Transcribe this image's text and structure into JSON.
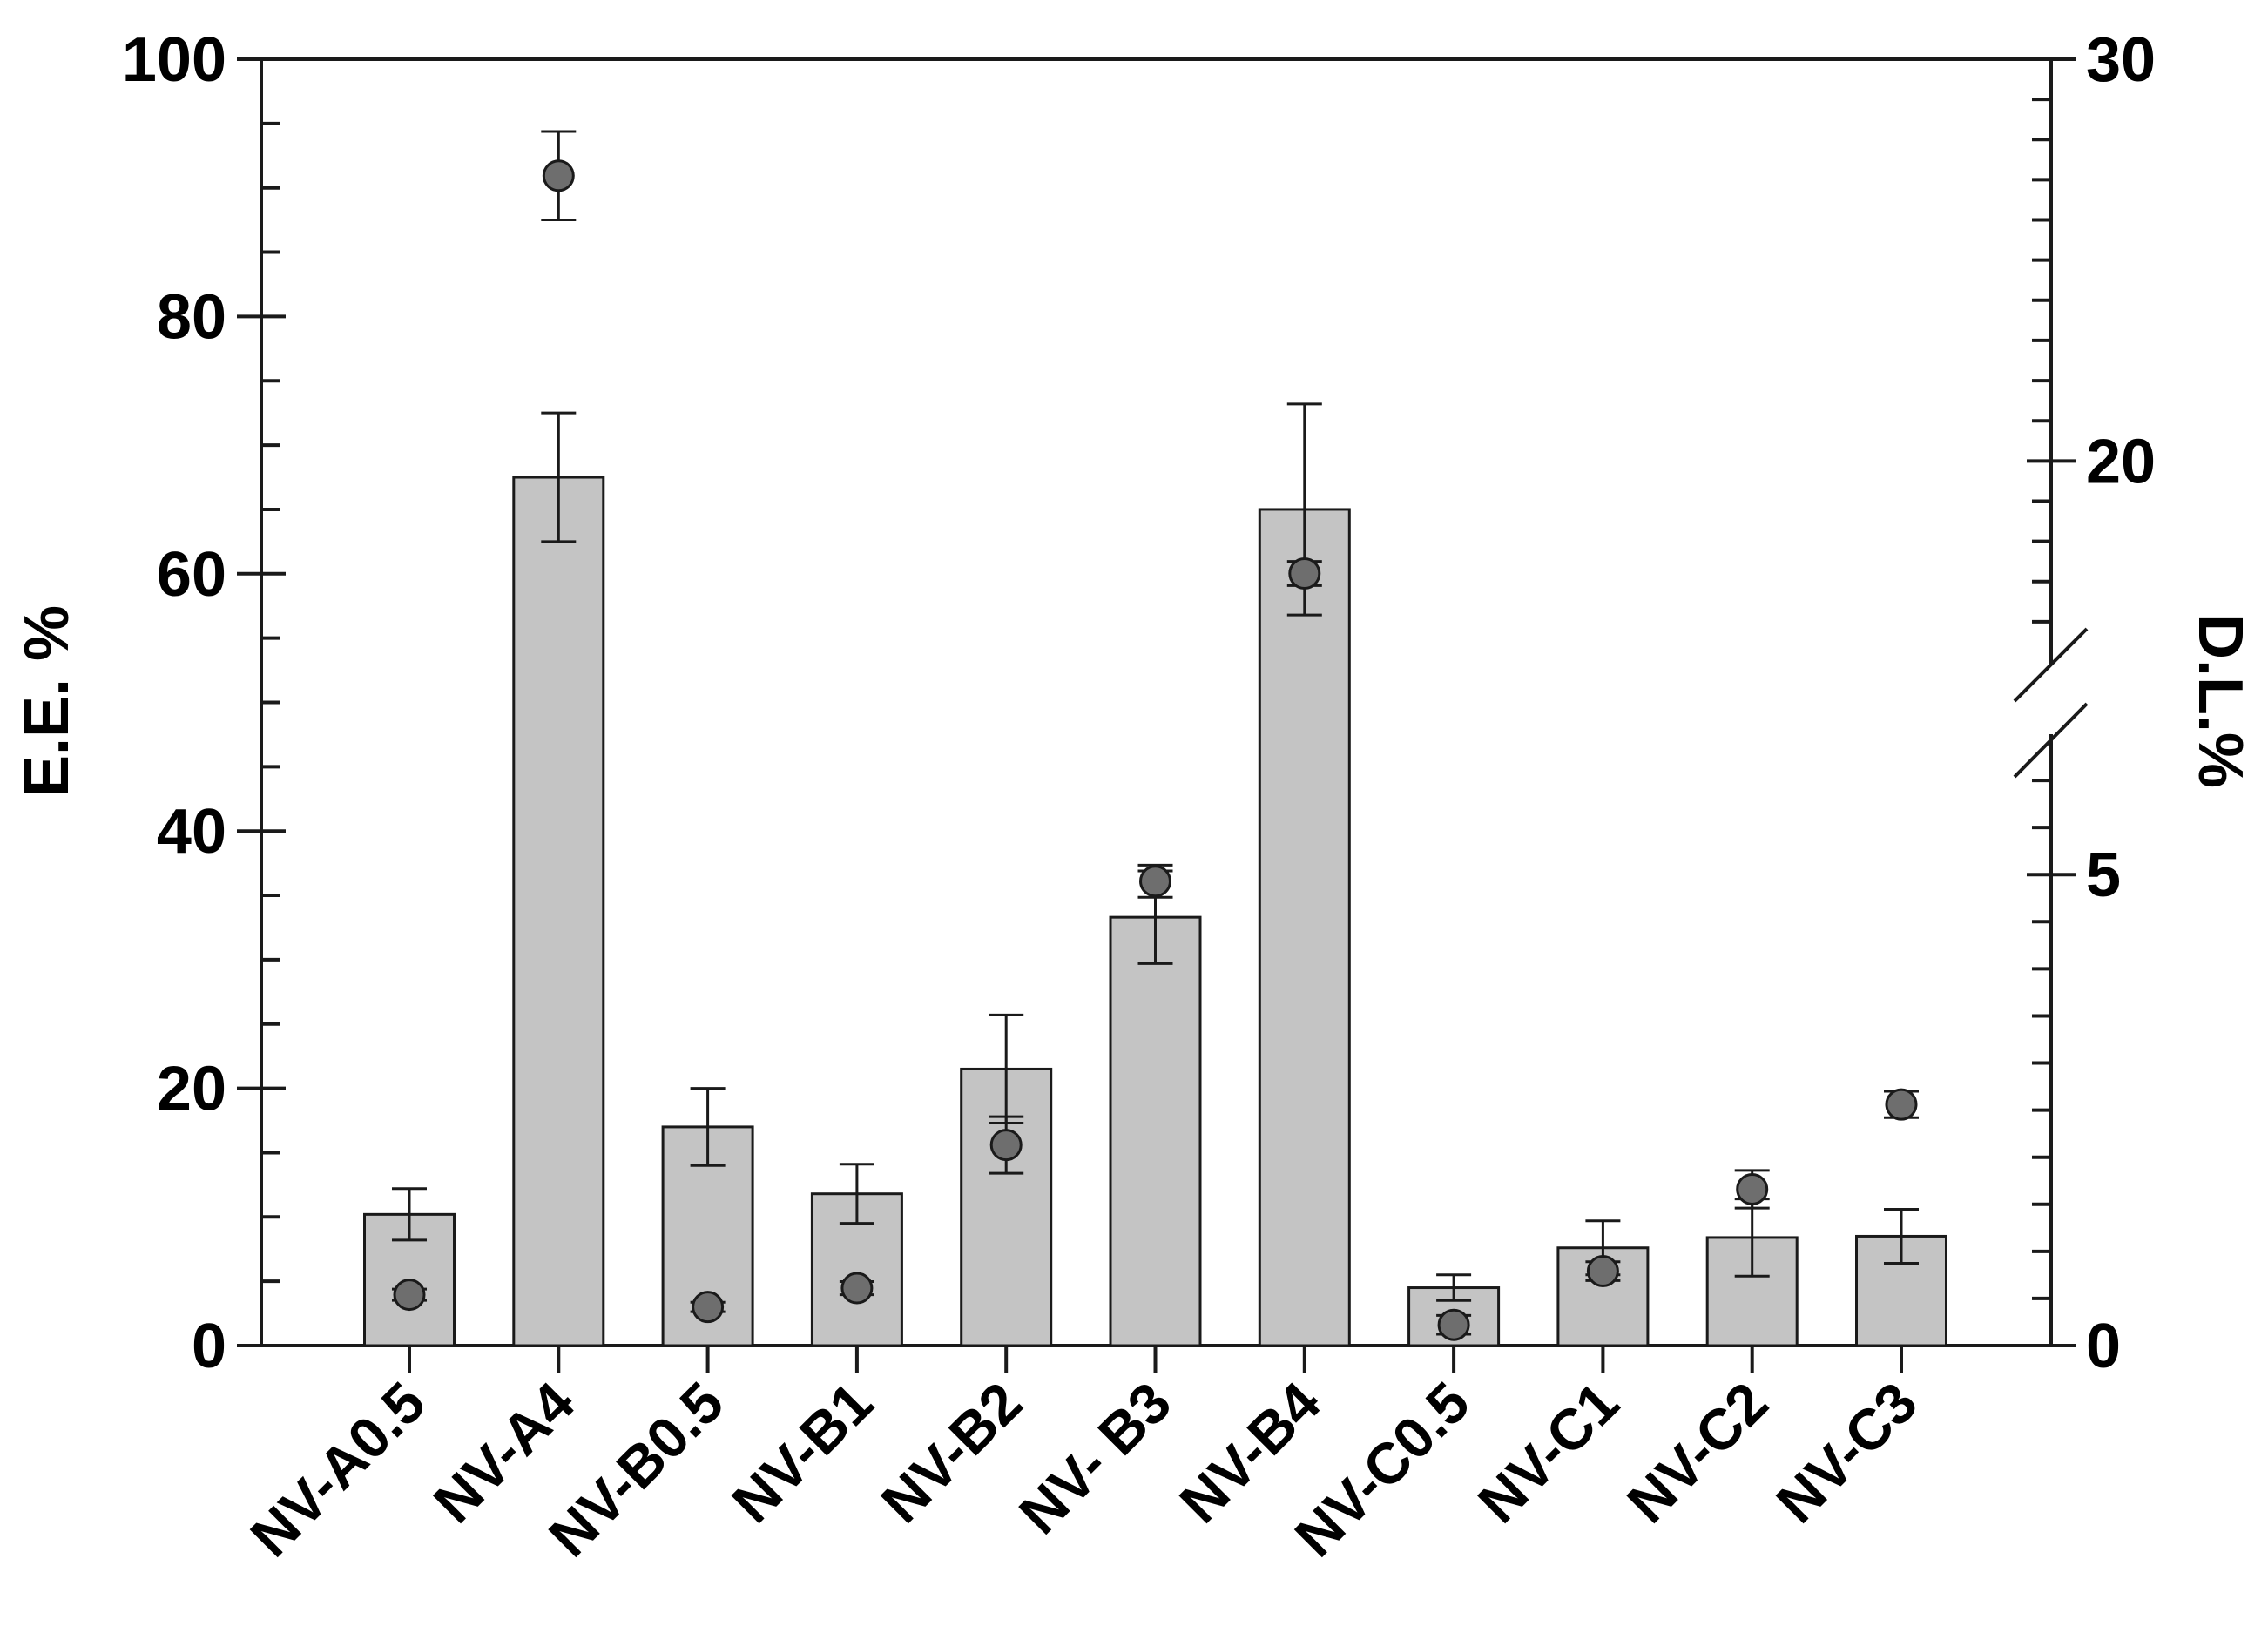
{
  "chart_data": {
    "type": "bar",
    "title": "",
    "xlabel": "",
    "ylabel": "E.E. %",
    "y2label": "D.L.%",
    "ylim": [
      0,
      100
    ],
    "y2_segments": {
      "lower": [
        0,
        6.5
      ],
      "upper": [
        15,
        30
      ],
      "break": true
    },
    "yticks": [
      "0",
      "20",
      "40",
      "60",
      "80",
      "100"
    ],
    "y2ticks": [
      "0",
      "5",
      "20",
      "30"
    ],
    "grid": false,
    "legend": "none",
    "categories": [
      "NV-A0.5",
      "NV-A4",
      "NV-B0.5",
      "NV-B1",
      "NV-B2",
      "NV- B3",
      "NV-B4",
      "NV-C0.5",
      "NV-C1",
      "NV-C2",
      "NV-C3"
    ],
    "series": [
      {
        "axis": "left",
        "kind": "bar",
        "values": [
          10.2,
          67.5,
          17.0,
          11.8,
          21.5,
          33.3,
          65.0,
          4.5,
          7.6,
          8.4,
          8.5
        ],
        "errors": [
          2.0,
          5.0,
          3.0,
          2.3,
          4.2,
          3.6,
          8.2,
          1.0,
          2.1,
          3.0,
          2.1
        ]
      },
      {
        "axis": "right",
        "kind": "point",
        "values": [
          0.54,
          27.1,
          0.41,
          0.61,
          2.13,
          4.93,
          17.2,
          0.22,
          0.79,
          1.66,
          2.56
        ],
        "errors": [
          0.06,
          1.1,
          0.05,
          0.07,
          0.3,
          0.17,
          0.3,
          0.1,
          0.1,
          0.2,
          0.14
        ]
      }
    ],
    "colors": {
      "bar_fill": "#c4c4c4",
      "bar_stroke": "#1a1a1a",
      "point_fill": "#6e6e6e",
      "point_stroke": "#1a1a1a"
    }
  }
}
